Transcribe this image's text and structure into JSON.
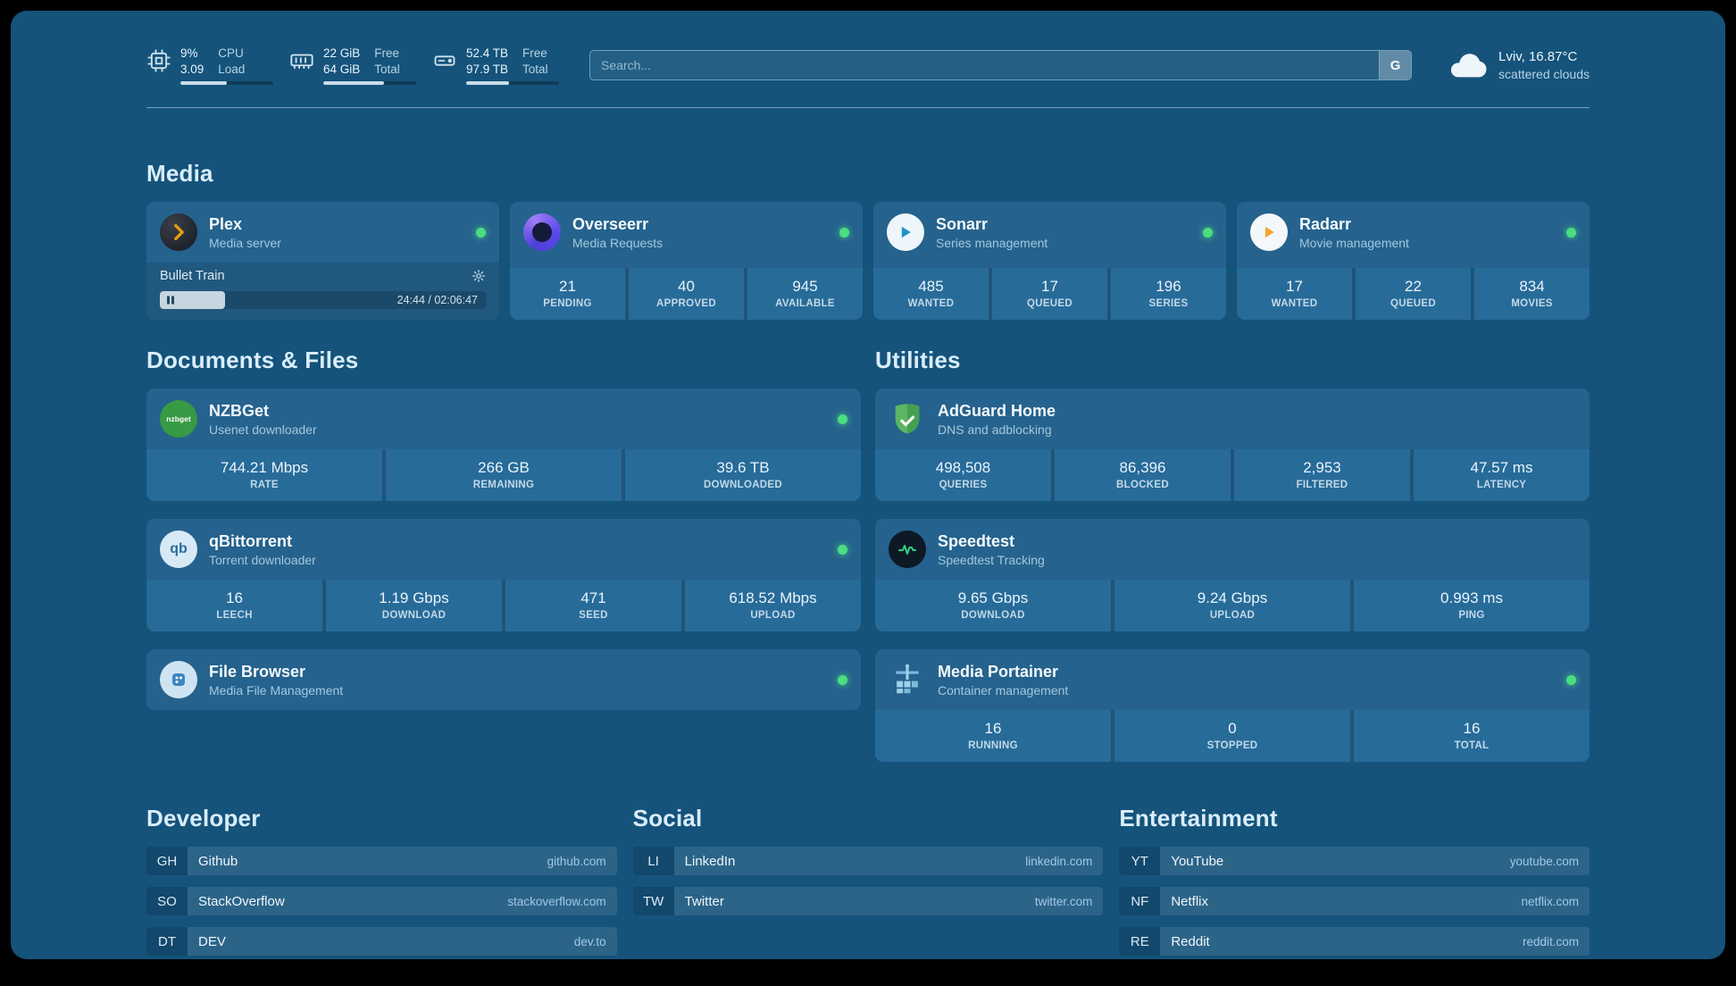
{
  "theme": {
    "background": "#15537b",
    "card": "#25628d",
    "stat_box": "#276b99",
    "status_green": "#4ade80",
    "heading_text": "#d9edf9",
    "plex_orange": "#e5a00d"
  },
  "topbar": {
    "cpu": {
      "value1": "9%",
      "value2": "3.09",
      "label1": "CPU",
      "label2": "Load",
      "progress": 50
    },
    "memory": {
      "value1": "22 GiB",
      "value2": "64 GiB",
      "label1": "Free",
      "label2": "Total",
      "progress": 65
    },
    "disk": {
      "value1": "52.4 TB",
      "value2": "97.9 TB",
      "label1": "Free",
      "label2": "Total",
      "progress": 46
    },
    "search": {
      "placeholder": "Search...",
      "provider": "G"
    },
    "weather": {
      "location": "Lviv, 16.87°C",
      "condition": "scattered clouds"
    }
  },
  "media": {
    "title": "Media",
    "plex": {
      "name": "Plex",
      "subtitle": "Media server",
      "now_playing": "Bullet Train",
      "time": "24:44 / 02:06:47",
      "progress": 20
    },
    "overseerr": {
      "name": "Overseerr",
      "subtitle": "Media Requests",
      "stats": [
        {
          "value": "21",
          "label": "PENDING"
        },
        {
          "value": "40",
          "label": "APPROVED"
        },
        {
          "value": "945",
          "label": "AVAILABLE"
        }
      ]
    },
    "sonarr": {
      "name": "Sonarr",
      "subtitle": "Series management",
      "stats": [
        {
          "value": "485",
          "label": "WANTED"
        },
        {
          "value": "17",
          "label": "QUEUED"
        },
        {
          "value": "196",
          "label": "SERIES"
        }
      ]
    },
    "radarr": {
      "name": "Radarr",
      "subtitle": "Movie management",
      "stats": [
        {
          "value": "17",
          "label": "WANTED"
        },
        {
          "value": "22",
          "label": "QUEUED"
        },
        {
          "value": "834",
          "label": "MOVIES"
        }
      ]
    }
  },
  "documents": {
    "title": "Documents & Files",
    "nzbget": {
      "name": "NZBGet",
      "subtitle": "Usenet downloader",
      "stats": [
        {
          "value": "744.21 Mbps",
          "label": "RATE"
        },
        {
          "value": "266 GB",
          "label": "REMAINING"
        },
        {
          "value": "39.6 TB",
          "label": "DOWNLOADED"
        }
      ]
    },
    "qbittorrent": {
      "name": "qBittorrent",
      "subtitle": "Torrent downloader",
      "stats": [
        {
          "value": "16",
          "label": "LEECH"
        },
        {
          "value": "1.19 Gbps",
          "label": "DOWNLOAD"
        },
        {
          "value": "471",
          "label": "SEED"
        },
        {
          "value": "618.52 Mbps",
          "label": "UPLOAD"
        }
      ]
    },
    "filebrowser": {
      "name": "File Browser",
      "subtitle": "Media File Management"
    }
  },
  "utilities": {
    "title": "Utilities",
    "adguard": {
      "name": "AdGuard Home",
      "subtitle": "DNS and adblocking",
      "stats": [
        {
          "value": "498,508",
          "label": "QUERIES"
        },
        {
          "value": "86,396",
          "label": "BLOCKED"
        },
        {
          "value": "2,953",
          "label": "FILTERED"
        },
        {
          "value": "47.57 ms",
          "label": "LATENCY"
        }
      ]
    },
    "speedtest": {
      "name": "Speedtest",
      "subtitle": "Speedtest Tracking",
      "stats": [
        {
          "value": "9.65 Gbps",
          "label": "DOWNLOAD"
        },
        {
          "value": "9.24 Gbps",
          "label": "UPLOAD"
        },
        {
          "value": "0.993 ms",
          "label": "PING"
        }
      ]
    },
    "portainer": {
      "name": "Media Portainer",
      "subtitle": "Container management",
      "stats": [
        {
          "value": "16",
          "label": "RUNNING"
        },
        {
          "value": "0",
          "label": "STOPPED"
        },
        {
          "value": "16",
          "label": "TOTAL"
        }
      ]
    }
  },
  "bookmarks": [
    {
      "title": "Developer",
      "items": [
        {
          "abbr": "GH",
          "name": "Github",
          "url": "github.com"
        },
        {
          "abbr": "SO",
          "name": "StackOverflow",
          "url": "stackoverflow.com"
        },
        {
          "abbr": "DT",
          "name": "DEV",
          "url": "dev.to"
        }
      ]
    },
    {
      "title": "Social",
      "items": [
        {
          "abbr": "LI",
          "name": "LinkedIn",
          "url": "linkedin.com"
        },
        {
          "abbr": "TW",
          "name": "Twitter",
          "url": "twitter.com"
        }
      ]
    },
    {
      "title": "Entertainment",
      "items": [
        {
          "abbr": "YT",
          "name": "YouTube",
          "url": "youtube.com"
        },
        {
          "abbr": "NF",
          "name": "Netflix",
          "url": "netflix.com"
        },
        {
          "abbr": "RE",
          "name": "Reddit",
          "url": "reddit.com"
        }
      ]
    }
  ],
  "icons": {
    "nzbget_badge": "nzbget",
    "qbittorrent_badge": "qb"
  }
}
